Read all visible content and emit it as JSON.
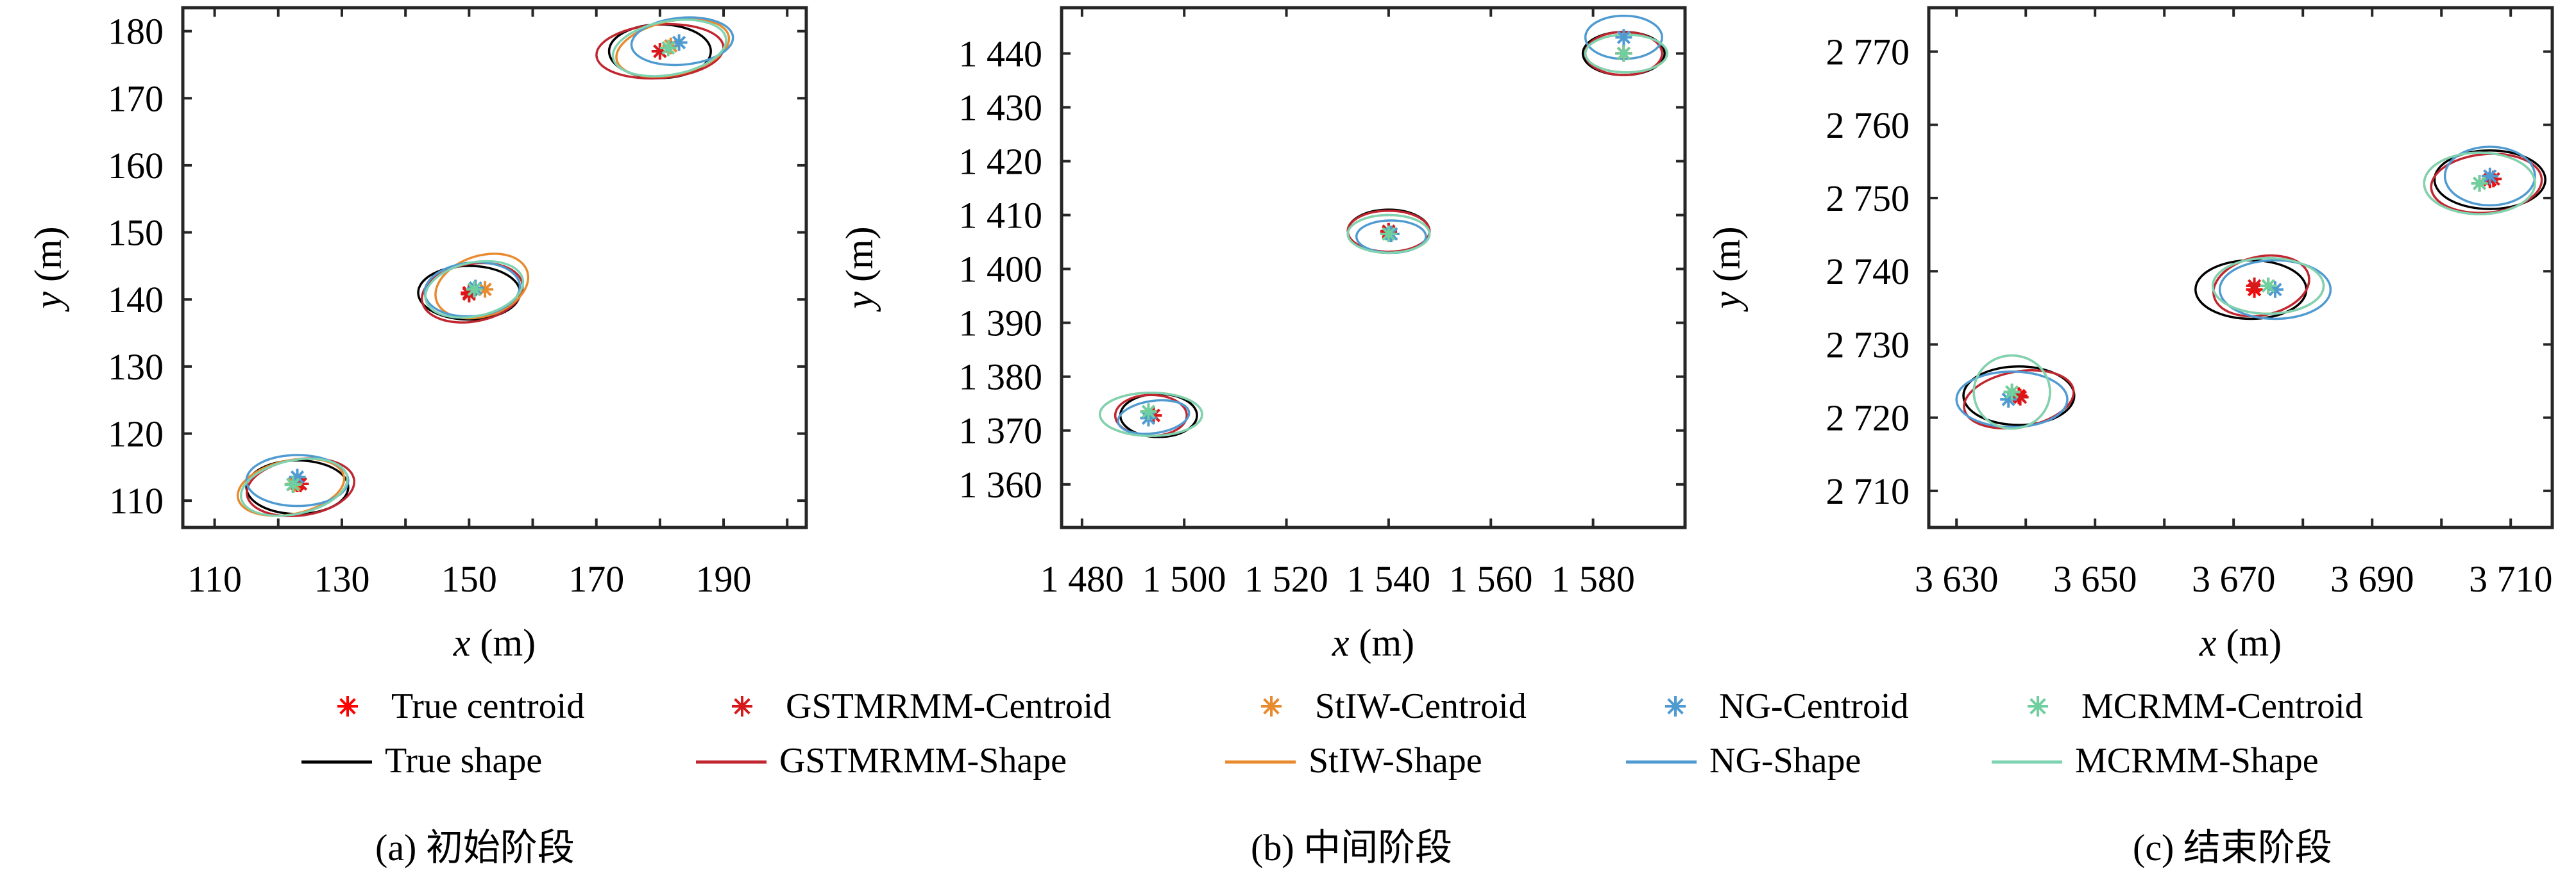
{
  "chart_data": [
    {
      "type": "scatter",
      "title": "",
      "caption": "(a) 初始阶段",
      "xlabel": "x (m)",
      "ylabel": "y (m)",
      "xlim": [
        105,
        203
      ],
      "ylim": [
        106,
        183.5
      ],
      "xticks": [
        110,
        120,
        130,
        140,
        150,
        160,
        170,
        180,
        190,
        200
      ],
      "xticklabels": [
        "110",
        "",
        "130",
        "",
        "150",
        "",
        "170",
        "",
        "190",
        ""
      ],
      "yticks": [
        110,
        120,
        130,
        140,
        150,
        160,
        170,
        180
      ],
      "yticklabels": [
        "110",
        "120",
        "130",
        "140",
        "150",
        "160",
        "170",
        "180"
      ],
      "grid": false,
      "series": [
        {
          "name": "True",
          "color": "#000000",
          "centroid_color": "#ff0000",
          "clusters": [
            {
              "cx": 123.0,
              "cy": 112.5,
              "ex": 123.0,
              "ey": 112.0,
              "a": 8.0,
              "b": 4.0,
              "angle": 0
            },
            {
              "cx": 150.0,
              "cy": 141.0,
              "ex": 150.0,
              "ey": 141.0,
              "a": 8.0,
              "b": 4.0,
              "angle": 0
            },
            {
              "cx": 180.0,
              "cy": 177.0,
              "ex": 180.0,
              "ey": 177.0,
              "a": 8.0,
              "b": 4.0,
              "angle": 0
            }
          ]
        },
        {
          "name": "GSTMRMM",
          "color": "#c0262f",
          "centroid_color": "#d7191c",
          "clusters": [
            {
              "cx": 123.5,
              "cy": 112.5,
              "ex": 123.5,
              "ey": 112.0,
              "a": 8.5,
              "b": 4.2,
              "angle": 8
            },
            {
              "cx": 150.0,
              "cy": 140.8,
              "ex": 150.5,
              "ey": 141.0,
              "a": 8.0,
              "b": 4.3,
              "angle": 10
            },
            {
              "cx": 180.0,
              "cy": 177.0,
              "ex": 180.0,
              "ey": 177.0,
              "a": 10.0,
              "b": 4.0,
              "angle": 4
            }
          ]
        },
        {
          "name": "StIW",
          "color": "#e88a2e",
          "centroid_color": "#e88a2e",
          "clusters": [
            {
              "cx": 122.5,
              "cy": 112.5,
              "ex": 122.0,
              "ey": 112.0,
              "a": 8.5,
              "b": 4.0,
              "angle": 12
            },
            {
              "cx": 152.5,
              "cy": 141.5,
              "ex": 152.0,
              "ey": 142.0,
              "a": 7.5,
              "b": 4.5,
              "angle": 18
            },
            {
              "cx": 181.7,
              "cy": 177.8,
              "ex": 182.0,
              "ey": 177.5,
              "a": 9.0,
              "b": 4.0,
              "angle": 12
            }
          ]
        },
        {
          "name": "NG",
          "color": "#4f9bd1",
          "centroid_color": "#4f9bd1",
          "clusters": [
            {
              "cx": 123.0,
              "cy": 113.5,
              "ex": 123.0,
              "ey": 113.0,
              "a": 8.0,
              "b": 3.8,
              "angle": 0
            },
            {
              "cx": 151.0,
              "cy": 141.7,
              "ex": 150.5,
              "ey": 141.5,
              "a": 7.5,
              "b": 4.0,
              "angle": 5
            },
            {
              "cx": 183.0,
              "cy": 178.3,
              "ex": 183.5,
              "ey": 178.5,
              "a": 8.0,
              "b": 3.5,
              "angle": 5
            }
          ]
        },
        {
          "name": "MCRMM",
          "color": "#7ed3b2",
          "centroid_color": "#6fcf9f",
          "clusters": [
            {
              "cx": 122.3,
              "cy": 112.4,
              "ex": 122.5,
              "ey": 112.0,
              "a": 8.5,
              "b": 4.0,
              "angle": 12
            },
            {
              "cx": 150.8,
              "cy": 141.5,
              "ex": 150.8,
              "ey": 141.5,
              "a": 7.8,
              "b": 4.0,
              "angle": 12
            },
            {
              "cx": 181.3,
              "cy": 177.5,
              "ex": 181.5,
              "ey": 177.5,
              "a": 9.0,
              "b": 4.0,
              "angle": 10
            }
          ]
        }
      ]
    },
    {
      "type": "scatter",
      "title": "",
      "caption": "(b) 中间阶段",
      "xlabel": "x (m)",
      "ylabel": "y (m)",
      "xlim": [
        1476,
        1598
      ],
      "ylim": [
        1352,
        1448.5
      ],
      "xticks": [
        1480,
        1500,
        1520,
        1540,
        1560,
        1580
      ],
      "xticklabels": [
        "1 480",
        "1 500",
        "1 520",
        "1 540",
        "1 560",
        "1 580"
      ],
      "yticks": [
        1360,
        1370,
        1380,
        1390,
        1400,
        1410,
        1420,
        1430,
        1440
      ],
      "yticklabels": [
        "1 360",
        "1 370",
        "1 380",
        "1 390",
        "1 400",
        "1 410",
        "1 420",
        "1 430",
        "1 440"
      ],
      "grid": false,
      "series": [
        {
          "name": "True",
          "color": "#000000",
          "centroid_color": "#ff0000",
          "clusters": [
            {
              "cx": 1494.0,
              "cy": 1372.8,
              "ex": 1495.0,
              "ey": 1372.8,
              "a": 7.5,
              "b": 4.0,
              "angle": 0
            },
            {
              "cx": 1540.0,
              "cy": 1406.8,
              "ex": 1540.0,
              "ey": 1407.0,
              "a": 8.0,
              "b": 4.0,
              "angle": 0
            },
            {
              "cx": 1586.0,
              "cy": 1440.0,
              "ex": 1586.0,
              "ey": 1440.0,
              "a": 8.0,
              "b": 4.0,
              "angle": 0
            }
          ]
        },
        {
          "name": "GSTMRMM",
          "color": "#c0262f",
          "centroid_color": "#d7191c",
          "clusters": [
            {
              "cx": 1494.0,
              "cy": 1372.8,
              "ex": 1493.5,
              "ey": 1372.8,
              "a": 7.0,
              "b": 3.8,
              "angle": 0
            },
            {
              "cx": 1540.0,
              "cy": 1407.0,
              "ex": 1540.0,
              "ey": 1407.0,
              "a": 8.0,
              "b": 3.8,
              "angle": 0
            },
            {
              "cx": 1586.0,
              "cy": 1440.0,
              "ex": 1586.0,
              "ey": 1440.0,
              "a": 7.5,
              "b": 4.0,
              "angle": 0
            }
          ]
        },
        {
          "name": "StIW",
          "color": "#e88a2e",
          "centroid_color": "#e88a2e",
          "clusters": [
            {
              "cx": 1493.0,
              "cy": 1373.5,
              "ex": 1493.5,
              "ey": 1373.0,
              "a": 10.0,
              "b": 4.0,
              "angle": 0
            },
            {
              "cx": 1540.0,
              "cy": 1406.5,
              "ex": 1540.0,
              "ey": 1406.5,
              "a": 8.0,
              "b": 3.5,
              "angle": 0
            },
            {
              "cx": 1586.0,
              "cy": 1440.0,
              "ex": 1586.5,
              "ey": 1440.0,
              "a": 8.0,
              "b": 3.5,
              "angle": 0
            }
          ]
        },
        {
          "name": "NG",
          "color": "#4f9bd1",
          "centroid_color": "#4f9bd1",
          "clusters": [
            {
              "cx": 1493.0,
              "cy": 1372.3,
              "ex": 1494.0,
              "ey": 1372.5,
              "a": 7.0,
              "b": 3.0,
              "angle": 8
            },
            {
              "cx": 1540.5,
              "cy": 1406.5,
              "ex": 1540.5,
              "ey": 1406.0,
              "a": 6.8,
              "b": 3.0,
              "angle": 0
            },
            {
              "cx": 1586.0,
              "cy": 1443.0,
              "ex": 1586.0,
              "ey": 1443.0,
              "a": 7.5,
              "b": 4.0,
              "angle": 0
            }
          ]
        },
        {
          "name": "MCRMM",
          "color": "#7ed3b2",
          "centroid_color": "#6fcf9f",
          "clusters": [
            {
              "cx": 1493.0,
              "cy": 1373.5,
              "ex": 1493.5,
              "ey": 1373.0,
              "a": 10.0,
              "b": 4.0,
              "angle": 0
            },
            {
              "cx": 1540.0,
              "cy": 1406.5,
              "ex": 1540.0,
              "ey": 1406.5,
              "a": 8.0,
              "b": 3.5,
              "angle": 0
            },
            {
              "cx": 1586.0,
              "cy": 1440.0,
              "ex": 1586.5,
              "ey": 1440.0,
              "a": 8.0,
              "b": 3.5,
              "angle": 0
            }
          ]
        }
      ]
    },
    {
      "type": "scatter",
      "title": "",
      "caption": "(c) 结束阶段",
      "xlabel": "x (m)",
      "ylabel": "y (m)",
      "xlim": [
        3626,
        3716
      ],
      "ylim": [
        2705,
        2776
      ],
      "xticks": [
        3630,
        3640,
        3650,
        3660,
        3670,
        3680,
        3690,
        3700,
        3710
      ],
      "xticklabels": [
        "3 630",
        "",
        "3 650",
        "",
        "3 670",
        "",
        "3 690",
        "",
        "3 710"
      ],
      "yticks": [
        2710,
        2720,
        2730,
        2740,
        2750,
        2760,
        2770
      ],
      "yticklabels": [
        "2 710",
        "2 720",
        "2 730",
        "2 740",
        "2 750",
        "2 760",
        "2 770"
      ],
      "grid": false,
      "series": [
        {
          "name": "True",
          "color": "#000000",
          "centroid_color": "#ff0000",
          "clusters": [
            {
              "cx": 3639.0,
              "cy": 2723.0,
              "ex": 3639.0,
              "ey": 2723.0,
              "a": 8.0,
              "b": 4.0,
              "angle": 0
            },
            {
              "cx": 3673.0,
              "cy": 2737.5,
              "ex": 3672.5,
              "ey": 2737.5,
              "a": 8.0,
              "b": 4.0,
              "angle": 0
            },
            {
              "cx": 3707.0,
              "cy": 2752.5,
              "ex": 3707.0,
              "ey": 2752.5,
              "a": 8.0,
              "b": 4.0,
              "angle": 0
            }
          ]
        },
        {
          "name": "GSTMRMM",
          "color": "#c0262f",
          "centroid_color": "#d7191c",
          "clusters": [
            {
              "cx": 3639.2,
              "cy": 2722.8,
              "ex": 3639.0,
              "ey": 2722.5,
              "a": 8.0,
              "b": 3.8,
              "angle": 10
            },
            {
              "cx": 3673.0,
              "cy": 2738.0,
              "ex": 3674.0,
              "ey": 2738.0,
              "a": 7.0,
              "b": 4.0,
              "angle": 12
            },
            {
              "cx": 3707.5,
              "cy": 2752.6,
              "ex": 3706.5,
              "ey": 2752.0,
              "a": 8.0,
              "b": 4.0,
              "angle": 5
            }
          ]
        },
        {
          "name": "StIW",
          "color": "#e88a2e",
          "centroid_color": "#e88a2e",
          "clusters": [
            {
              "cx": 3638.0,
              "cy": 2723.5,
              "ex": 3638.0,
              "ey": 2723.5,
              "a": 5.5,
              "b": 5.0,
              "angle": 0
            },
            {
              "cx": 3675.0,
              "cy": 2738.0,
              "ex": 3675.0,
              "ey": 2738.0,
              "a": 8.0,
              "b": 3.8,
              "angle": 0
            },
            {
              "cx": 3705.5,
              "cy": 2752.0,
              "ex": 3705.5,
              "ey": 2752.0,
              "a": 8.0,
              "b": 4.2,
              "angle": 0
            }
          ]
        },
        {
          "name": "NG",
          "color": "#4f9bd1",
          "centroid_color": "#4f9bd1",
          "clusters": [
            {
              "cx": 3637.5,
              "cy": 2722.5,
              "ex": 3638.0,
              "ey": 2722.5,
              "a": 8.0,
              "b": 3.8,
              "angle": 0
            },
            {
              "cx": 3676.0,
              "cy": 2737.5,
              "ex": 3676.0,
              "ey": 2737.5,
              "a": 8.0,
              "b": 4.0,
              "angle": 0
            },
            {
              "cx": 3707.0,
              "cy": 2753.0,
              "ex": 3707.0,
              "ey": 2753.0,
              "a": 6.5,
              "b": 4.0,
              "angle": 0
            }
          ]
        },
        {
          "name": "MCRMM",
          "color": "#7ed3b2",
          "centroid_color": "#6fcf9f",
          "clusters": [
            {
              "cx": 3638.0,
              "cy": 2723.5,
              "ex": 3638.0,
              "ey": 2723.5,
              "a": 5.5,
              "b": 5.0,
              "angle": 0
            },
            {
              "cx": 3675.0,
              "cy": 2738.0,
              "ex": 3675.0,
              "ey": 2738.0,
              "a": 8.0,
              "b": 3.8,
              "angle": 0
            },
            {
              "cx": 3705.5,
              "cy": 2752.0,
              "ex": 3705.5,
              "ey": 2752.0,
              "a": 8.0,
              "b": 4.2,
              "angle": 0
            }
          ]
        }
      ]
    }
  ],
  "legend": {
    "placement": "bottom",
    "items": [
      {
        "label": "True centroid",
        "kind": "marker",
        "color": "#ff0000"
      },
      {
        "label": "GSTMRMM-Centroid",
        "kind": "marker",
        "color": "#d7191c"
      },
      {
        "label": "StIW-Centroid",
        "kind": "marker",
        "color": "#e88a2e"
      },
      {
        "label": "NG-Centroid",
        "kind": "marker",
        "color": "#4f9bd1"
      },
      {
        "label": "MCRMM-Centroid",
        "kind": "marker",
        "color": "#6fcf9f"
      },
      {
        "label": "True shape",
        "kind": "line",
        "color": "#000000"
      },
      {
        "label": "GSTMRMM-Shape",
        "kind": "line",
        "color": "#c0262f"
      },
      {
        "label": "StIW-Shape",
        "kind": "line",
        "color": "#e88a2e"
      },
      {
        "label": "NG-Shape",
        "kind": "line",
        "color": "#4f9bd1"
      },
      {
        "label": "MCRMM-Shape",
        "kind": "line",
        "color": "#7ed3b2"
      }
    ]
  }
}
